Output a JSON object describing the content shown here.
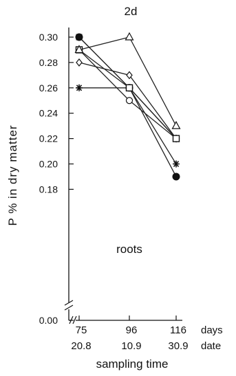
{
  "chart_data": {
    "type": "line",
    "title": "2d",
    "ylabel": "P % in dry matter",
    "xlabel": "sampling time",
    "annotation": "roots",
    "x_values": [
      75,
      96,
      116
    ],
    "x_tick_days": [
      "75",
      "96",
      "116"
    ],
    "x_tick_dates": [
      "20.8",
      "10.9",
      "30.9"
    ],
    "x_unit_days": "days",
    "x_unit_date": "date",
    "y_axis_break": true,
    "ylim": [
      0.17,
      0.305
    ],
    "y_ticks": [
      "0.30",
      "0.28",
      "0.26",
      "0.24",
      "0.22",
      "0.20",
      "0.18"
    ],
    "y_tick_values": [
      0.3,
      0.28,
      0.26,
      0.24,
      0.22,
      0.2,
      0.18
    ],
    "y_zero_label": "0.00",
    "series": [
      {
        "marker": "filled-circle",
        "values": [
          0.3,
          0.26,
          0.19
        ]
      },
      {
        "marker": "open-square",
        "values": [
          0.29,
          0.26,
          0.22
        ]
      },
      {
        "marker": "open-triangle",
        "values": [
          0.29,
          0.3,
          0.23
        ]
      },
      {
        "marker": "open-circle",
        "values": [
          0.29,
          0.25,
          0.22
        ]
      },
      {
        "marker": "open-diamond",
        "values": [
          0.28,
          0.27,
          0.22
        ]
      },
      {
        "marker": "asterisk",
        "values": [
          0.26,
          0.26,
          0.2
        ]
      },
      {
        "marker": "filled-square",
        "values": [
          0.3,
          0.26,
          0.22
        ]
      }
    ]
  }
}
